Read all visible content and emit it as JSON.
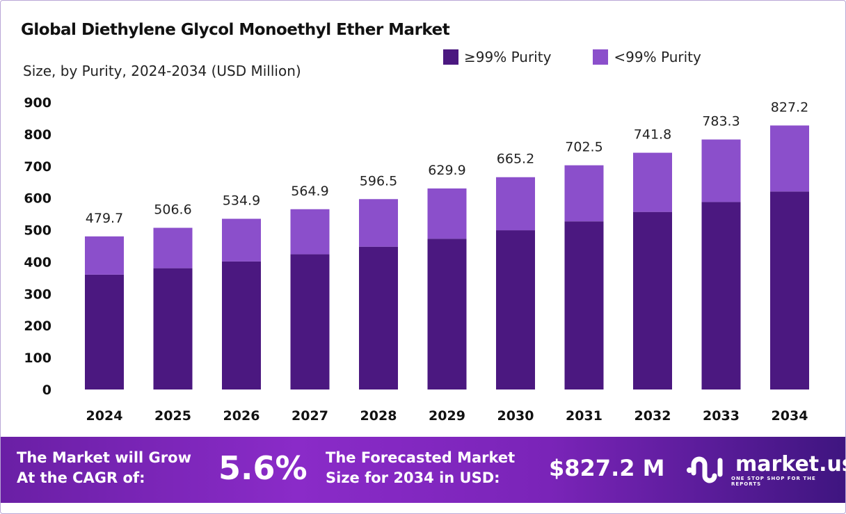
{
  "chart_data": {
    "type": "bar",
    "stacked": true,
    "title": "Global Diethylene Glycol Monoethyl Ether Market",
    "subtitle": "Size, by Purity, 2024-2034 (USD Million)",
    "categories": [
      "2024",
      "2025",
      "2026",
      "2027",
      "2028",
      "2029",
      "2030",
      "2031",
      "2032",
      "2033",
      "2034"
    ],
    "series": [
      {
        "name": "≥99% Purity",
        "color": "#4b1880",
        "values": [
          359.8,
          380.0,
          401.2,
          423.7,
          447.4,
          472.4,
          498.9,
          526.9,
          556.4,
          587.5,
          620.4
        ]
      },
      {
        "name": "<99% Purity",
        "color": "#8b4fcb",
        "values": [
          119.9,
          126.6,
          133.7,
          141.2,
          149.1,
          157.5,
          166.3,
          175.6,
          185.4,
          195.8,
          206.8
        ]
      }
    ],
    "totals": [
      "479.7",
      "506.6",
      "534.9",
      "564.9",
      "596.5",
      "629.9",
      "665.2",
      "702.5",
      "741.8",
      "783.3",
      "827.2"
    ],
    "yticks": [
      0,
      100,
      200,
      300,
      400,
      500,
      600,
      700,
      800,
      900
    ],
    "ylim": [
      0,
      900
    ],
    "grid": false,
    "legend": "top-right"
  },
  "footer": {
    "cagr_label_1": "The Market will Grow",
    "cagr_label_2": "At the CAGR of:",
    "cagr_value": "5.6%",
    "forecast_label_1": "The Forecasted Market",
    "forecast_label_2": "Size for 2034 in USD:",
    "forecast_value": "$827.2 M",
    "brand": "market.us",
    "tagline": "ONE STOP SHOP FOR THE REPORTS"
  }
}
